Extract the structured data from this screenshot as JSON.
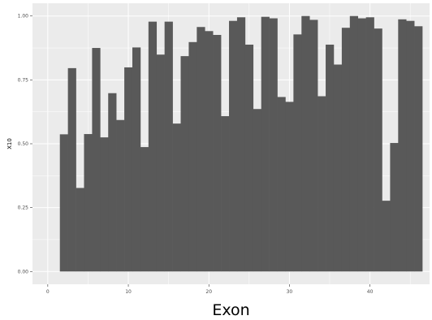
{
  "chart_data": {
    "type": "bar",
    "xlabel": "Exon",
    "ylabel": "X10",
    "x": [
      2,
      3,
      4,
      5,
      6,
      7,
      8,
      9,
      10,
      11,
      12,
      13,
      14,
      15,
      16,
      17,
      18,
      19,
      20,
      21,
      22,
      23,
      24,
      25,
      26,
      27,
      28,
      29,
      30,
      31,
      32,
      33,
      34,
      35,
      36,
      37,
      38,
      39,
      40,
      41,
      42,
      43,
      44,
      45,
      46
    ],
    "values": [
      0.537,
      0.796,
      0.327,
      0.538,
      0.875,
      0.525,
      0.698,
      0.593,
      0.799,
      0.877,
      0.487,
      0.978,
      0.849,
      0.978,
      0.579,
      0.843,
      0.898,
      0.957,
      0.941,
      0.926,
      0.608,
      0.981,
      0.995,
      0.888,
      0.636,
      0.997,
      0.991,
      0.683,
      0.664,
      0.928,
      1.0,
      0.985,
      0.686,
      0.888,
      0.81,
      0.954,
      1.0,
      0.991,
      0.995,
      0.951,
      0.277,
      0.503,
      0.987,
      0.981,
      0.96
    ],
    "xlim": [
      -1.9,
      47.4
    ],
    "ylim": [
      -0.05,
      1.05
    ],
    "x_ticks": [
      "0",
      "10",
      "20",
      "30",
      "40"
    ],
    "y_ticks": [
      "0.00",
      "0.25",
      "0.50",
      "0.75",
      "1.00"
    ],
    "grid": true,
    "bar_color": "#595959",
    "panel_color": "#ebebeb",
    "grid_color": "#ffffff"
  }
}
